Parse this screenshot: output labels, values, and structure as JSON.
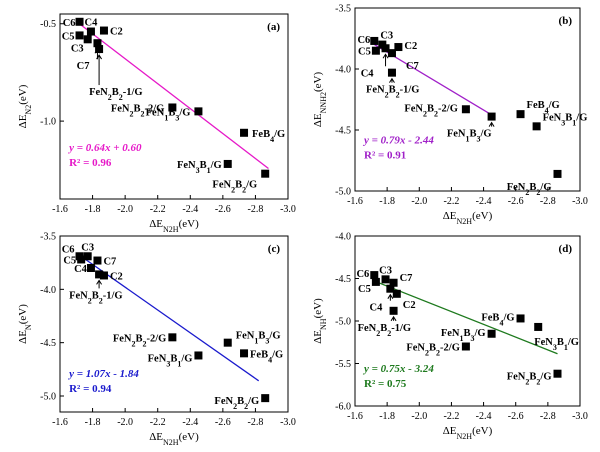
{
  "chart_data": [
    {
      "type": "scatter",
      "panel": "(a)",
      "xlabel": "ΔE_N2H(eV)",
      "ylabel": "ΔE_N2(eV)",
      "xlim": [
        -1.6,
        -3.0
      ],
      "ylim": [
        -1.4,
        -0.45
      ],
      "xticks": [
        -1.6,
        -1.8,
        -2.0,
        -2.2,
        -2.4,
        -2.6,
        -2.8,
        -3.0
      ],
      "yticks": [
        -0.5,
        -1.0
      ],
      "fit": {
        "slope": 0.64,
        "intercept": 0.6,
        "equation": "y = 0.64x + 0.60",
        "r2": "R² = 0.96",
        "color": "#e619c8"
      },
      "points": [
        {
          "label": "C6",
          "x": -1.72,
          "y": -0.49
        },
        {
          "label": "C4",
          "x": -1.79,
          "y": -0.54
        },
        {
          "label": "C2",
          "x": -1.87,
          "y": -0.535
        },
        {
          "label": "C5",
          "x": -1.72,
          "y": -0.56
        },
        {
          "label": "C3",
          "x": -1.77,
          "y": -0.58
        },
        {
          "label": "C7",
          "x": -1.83,
          "y": -0.6
        },
        {
          "label": "FeN2B2-1/G",
          "x": -1.84,
          "y": -0.63
        },
        {
          "label": "FeN2B2-2/G",
          "x": -2.29,
          "y": -0.93
        },
        {
          "label": "FeN1B3/G",
          "x": -2.45,
          "y": -0.95
        },
        {
          "label": "FeB4/G",
          "x": -2.73,
          "y": -1.06
        },
        {
          "label": "FeN3B1/G",
          "x": -2.63,
          "y": -1.22
        },
        {
          "label": "FeN2B2/G",
          "x": -2.86,
          "y": -1.27
        }
      ]
    },
    {
      "type": "scatter",
      "panel": "(b)",
      "xlabel": "ΔE_N2H(eV)",
      "ylabel": "ΔE_NNH2(eV)",
      "xlim": [
        -1.6,
        -3.0
      ],
      "ylim": [
        -5.0,
        -3.5
      ],
      "xticks": [
        -1.6,
        -1.8,
        -2.0,
        -2.2,
        -2.4,
        -2.6,
        -2.8,
        -3.0
      ],
      "yticks": [
        -3.5,
        -4.0,
        -4.5,
        -5.0
      ],
      "fit": {
        "slope": 0.79,
        "intercept": -2.44,
        "equation": "y = 0.79x - 2.44",
        "r2": "R² = 0.91",
        "color": "#a020c8"
      },
      "points": [
        {
          "label": "C6",
          "x": -1.72,
          "y": -3.77
        },
        {
          "label": "C3",
          "x": -1.77,
          "y": -3.8
        },
        {
          "label": "C2",
          "x": -1.87,
          "y": -3.82
        },
        {
          "label": "C5",
          "x": -1.73,
          "y": -3.85
        },
        {
          "label": "C4",
          "x": -1.79,
          "y": -3.83
        },
        {
          "label": "C7",
          "x": -1.83,
          "y": -3.87
        },
        {
          "label": "FeN2B2-1/G",
          "x": -1.83,
          "y": -4.03
        },
        {
          "label": "FeN2B2-2/G",
          "x": -2.29,
          "y": -4.33
        },
        {
          "label": "FeN1B3/G",
          "x": -2.45,
          "y": -4.39
        },
        {
          "label": "FeB4/G",
          "x": -2.63,
          "y": -4.37
        },
        {
          "label": "FeN3B1/G",
          "x": -2.73,
          "y": -4.47
        },
        {
          "label": "FeN2B2/G",
          "x": -2.86,
          "y": -4.86
        }
      ]
    },
    {
      "type": "scatter",
      "panel": "(c)",
      "xlabel": "ΔE_N2H(eV)",
      "ylabel": "ΔE_N(eV)",
      "xlim": [
        -1.6,
        -3.0
      ],
      "ylim": [
        -5.15,
        -3.5
      ],
      "xticks": [
        -1.6,
        -1.8,
        -2.0,
        -2.2,
        -2.4,
        -2.6,
        -2.8,
        -3.0
      ],
      "yticks": [
        -3.5,
        -4.0,
        -4.5,
        -5.0
      ],
      "fit": {
        "slope": 1.07,
        "intercept": -1.84,
        "equation": "y = 1.07x - 1.84",
        "r2": "R² = 0.94",
        "color": "#1a1acd"
      },
      "points": [
        {
          "label": "C6",
          "x": -1.72,
          "y": -3.69
        },
        {
          "label": "C3",
          "x": -1.77,
          "y": -3.69
        },
        {
          "label": "C7",
          "x": -1.83,
          "y": -3.73
        },
        {
          "label": "C5",
          "x": -1.73,
          "y": -3.72
        },
        {
          "label": "C4",
          "x": -1.79,
          "y": -3.8
        },
        {
          "label": "C2",
          "x": -1.87,
          "y": -3.87
        },
        {
          "label": "FeN2B2-1/G",
          "x": -1.84,
          "y": -3.86
        },
        {
          "label": "FeN2B2-2/G",
          "x": -2.29,
          "y": -4.45
        },
        {
          "label": "FeN3B1/G",
          "x": -2.45,
          "y": -4.62
        },
        {
          "label": "FeN1B3/G",
          "x": -2.63,
          "y": -4.5
        },
        {
          "label": "FeB4/G",
          "x": -2.73,
          "y": -4.6
        },
        {
          "label": "FeN2B2/G",
          "x": -2.86,
          "y": -5.02
        }
      ]
    },
    {
      "type": "scatter",
      "panel": "(d)",
      "xlabel": "ΔE_N2H(eV)",
      "ylabel": "ΔE_NH(eV)",
      "xlim": [
        -1.6,
        -3.0
      ],
      "ylim": [
        -6.0,
        -4.0
      ],
      "xticks": [
        -1.6,
        -1.8,
        -2.0,
        -2.2,
        -2.4,
        -2.6,
        -2.8,
        -3.0
      ],
      "yticks": [
        -4.0,
        -4.5,
        -5.0,
        -5.5,
        -6.0
      ],
      "fit": {
        "slope": 0.75,
        "intercept": -3.24,
        "equation": "y = 0.75x - 3.24",
        "r2": "R² = 0.75",
        "color": "#1e7a1e"
      },
      "points": [
        {
          "label": "C6",
          "x": -1.72,
          "y": -4.46
        },
        {
          "label": "C3",
          "x": -1.79,
          "y": -4.51
        },
        {
          "label": "C7",
          "x": -1.84,
          "y": -4.55
        },
        {
          "label": "C5",
          "x": -1.73,
          "y": -4.54
        },
        {
          "label": "C4",
          "x": -1.82,
          "y": -4.62
        },
        {
          "label": "C2",
          "x": -1.86,
          "y": -4.68
        },
        {
          "label": "FeN2B2-1/G",
          "x": -1.84,
          "y": -4.88
        },
        {
          "label": "FeB4/G",
          "x": -2.63,
          "y": -4.97
        },
        {
          "label": "FeN3B1/G",
          "x": -2.74,
          "y": -5.07
        },
        {
          "label": "FeN1B3/G",
          "x": -2.45,
          "y": -5.15
        },
        {
          "label": "FeN2B2-2/G",
          "x": -2.29,
          "y": -5.3
        },
        {
          "label": "FeN2B2/G",
          "x": -2.86,
          "y": -5.62
        }
      ]
    }
  ]
}
